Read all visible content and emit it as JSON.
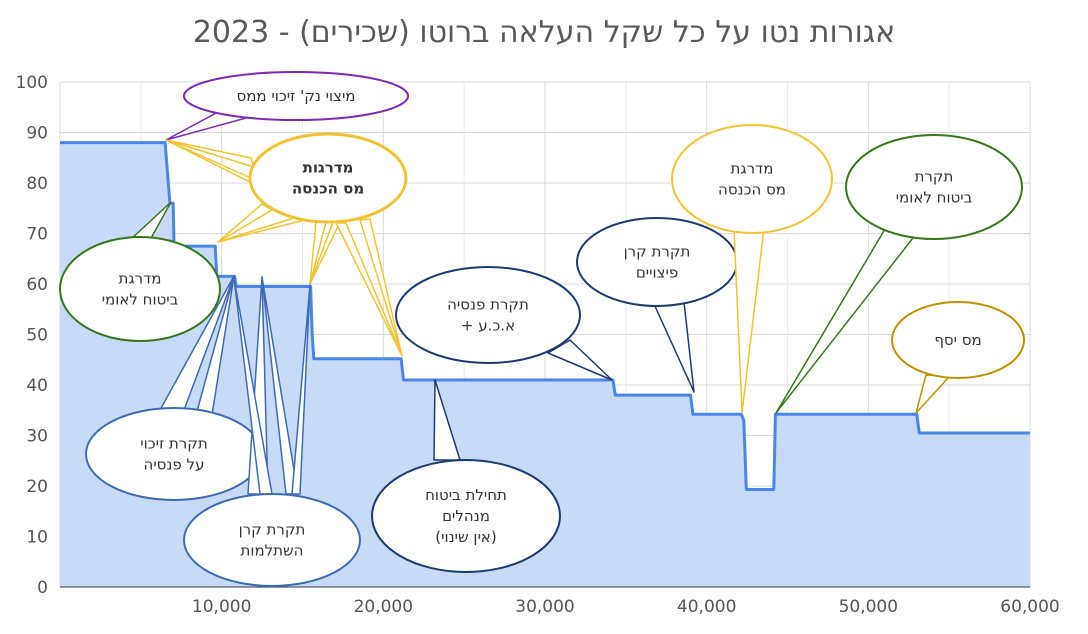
{
  "chart_data": {
    "type": "area",
    "title": "אגורות נטו על כל שקל העלאה ברוטו (שכירים) - 2023",
    "xlabel": "",
    "ylabel": "",
    "xlim": [
      0,
      60000
    ],
    "ylim": [
      0,
      100
    ],
    "x_ticks": [
      10000,
      20000,
      30000,
      40000,
      50000,
      60000
    ],
    "x_tick_labels": [
      "10,000",
      "20,000",
      "30,000",
      "40,000",
      "50,000",
      "60,000"
    ],
    "y_ticks": [
      0,
      10,
      20,
      30,
      40,
      50,
      60,
      70,
      80,
      90,
      100
    ],
    "y_tick_labels": [
      "0",
      "10",
      "20",
      "30",
      "40",
      "50",
      "60",
      "70",
      "80",
      "90",
      "100"
    ],
    "grid": true,
    "legend": "none",
    "series": [
      {
        "color": "#4a86e8",
        "fill": "#c9daf8",
        "points": [
          [
            0,
            88
          ],
          [
            6500,
            88
          ],
          [
            6700,
            80
          ],
          [
            6800,
            76
          ],
          [
            7000,
            76
          ],
          [
            7050,
            67.5
          ],
          [
            9600,
            67.5
          ],
          [
            9700,
            61.5
          ],
          [
            10800,
            61.5
          ],
          [
            10900,
            59.5
          ],
          [
            15500,
            59.5
          ],
          [
            15600,
            50
          ],
          [
            15700,
            45.2
          ],
          [
            21100,
            45.2
          ],
          [
            21250,
            41
          ],
          [
            34200,
            41
          ],
          [
            34350,
            38
          ],
          [
            39000,
            38
          ],
          [
            39150,
            34.2
          ],
          [
            42150,
            34.2
          ],
          [
            42300,
            33
          ],
          [
            42450,
            19.3
          ],
          [
            44150,
            19.3
          ],
          [
            44250,
            34.2
          ],
          [
            53000,
            34.2
          ],
          [
            53150,
            30.5
          ],
          [
            60000,
            30.5
          ]
        ]
      }
    ],
    "annotations": [
      {
        "id": "tax-credit-max",
        "text": [
          "מיצוי נק' זיכוי ממס"
        ],
        "color": "#7b2bb5",
        "bold": false
      },
      {
        "id": "income-tax-brackets-1",
        "text": [
          "מדרגות",
          "מס הכנסה"
        ],
        "color": "#f1c232",
        "bold": true
      },
      {
        "id": "ni-brackets",
        "text": [
          "מדרגת",
          "ביטוח לאומי"
        ],
        "color": "#38761d",
        "bold": false
      },
      {
        "id": "pension-credit-cap",
        "text": [
          "תקרת זיכוי",
          "על פנסיה"
        ],
        "color": "#3d6bb3",
        "bold": false
      },
      {
        "id": "study-fund-cap",
        "text": [
          "תקרת קרן",
          "השתלמות"
        ],
        "color": "#3d6bb3",
        "bold": false
      },
      {
        "id": "managers-insurance",
        "text": [
          "תחילת ביטוח",
          "מנהלים",
          "(אין שינוי)"
        ],
        "color": "#1c3a70",
        "bold": false
      },
      {
        "id": "pension-cap",
        "text": [
          "תקרת פנסיה",
          "+ א.כ.ע"
        ],
        "color": "#1c3a70",
        "bold": false
      },
      {
        "id": "severance-cap",
        "text": [
          "תקרת קרן",
          "פיצויים"
        ],
        "color": "#1c3a70",
        "bold": false
      },
      {
        "id": "income-tax-bracket-2",
        "text": [
          "מדרגת",
          "מס הכנסה"
        ],
        "color": "#f1c232",
        "bold": false
      },
      {
        "id": "ni-cap",
        "text": [
          "תקרת",
          "ביטוח לאומי"
        ],
        "color": "#38761d",
        "bold": false
      },
      {
        "id": "surtax",
        "text": [
          "מס יסף"
        ],
        "color": "#bf9000",
        "bold": false
      }
    ]
  }
}
